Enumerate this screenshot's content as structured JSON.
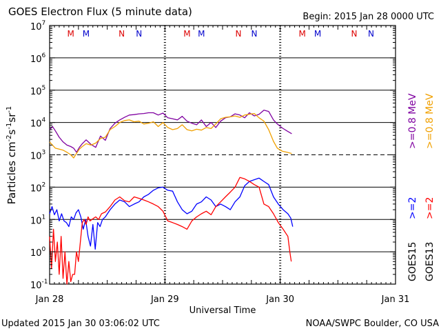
{
  "chart_data": {
    "type": "line",
    "title": "GOES Electron Flux (5 minute data)",
    "begin_label": "Begin: 2015 Jan 28 0000 UTC",
    "xlabel": "Universal Time",
    "ylabel": "Particles cm-2s-1sr-1",
    "ylabel_parts": [
      "Particles cm",
      "-2",
      "s",
      "-1",
      "sr",
      "-1"
    ],
    "y_scale": "log",
    "ylim": [
      0.1,
      10000000
    ],
    "y_ticks": [
      {
        "value": 10000000,
        "base": "10",
        "exp": "7"
      },
      {
        "value": 1000000,
        "base": "10",
        "exp": "6"
      },
      {
        "value": 100000,
        "base": "10",
        "exp": "5"
      },
      {
        "value": 10000,
        "base": "10",
        "exp": "4"
      },
      {
        "value": 1000,
        "base": "10",
        "exp": "3"
      },
      {
        "value": 100,
        "base": "10",
        "exp": "2"
      },
      {
        "value": 10,
        "base": "10",
        "exp": "1"
      },
      {
        "value": 1,
        "base": "10",
        "exp": "0"
      },
      {
        "value": 0.1,
        "base": "10",
        "exp": "-1"
      }
    ],
    "x_unit": "hours since 2015 Jan 28 0000 UTC",
    "xlim": [
      0,
      72
    ],
    "x_ticks": [
      {
        "value": 0,
        "label": "Jan 28"
      },
      {
        "value": 24,
        "label": "Jan 29"
      },
      {
        "value": 48,
        "label": "Jan 30"
      },
      {
        "value": 72,
        "label": "Jan 31"
      }
    ],
    "threshold_line": 1000,
    "mn_markers": [
      {
        "x": 4.4,
        "label": "M",
        "color": "#dd0000"
      },
      {
        "x": 7.6,
        "label": "M",
        "color": "#0000cc"
      },
      {
        "x": 15.0,
        "label": "N",
        "color": "#dd0000"
      },
      {
        "x": 18.6,
        "label": "N",
        "color": "#0000cc"
      },
      {
        "x": 28.6,
        "label": "M",
        "color": "#dd0000"
      },
      {
        "x": 31.6,
        "label": "M",
        "color": "#0000cc"
      },
      {
        "x": 39.3,
        "label": "N",
        "color": "#dd0000"
      },
      {
        "x": 42.6,
        "label": "N",
        "color": "#0000cc"
      },
      {
        "x": 52.6,
        "label": "M",
        "color": "#dd0000"
      },
      {
        "x": 55.8,
        "label": "M",
        "color": "#0000cc"
      },
      {
        "x": 63.4,
        "label": "N",
        "color": "#dd0000"
      },
      {
        "x": 66.9,
        "label": "N",
        "color": "#0000cc"
      }
    ],
    "legend_right": [
      {
        "text": "GOES15",
        "color": "#000000"
      },
      {
        "text": ">=2",
        "color": "#0000ff"
      },
      {
        "text": ">=0.8  MeV",
        "color": "#7f00a0"
      },
      {
        "text": "GOES13",
        "color": "#000000"
      },
      {
        "text": ">=2",
        "color": "#ff0000"
      },
      {
        "text": ">=0.8  MeV",
        "color": "#f0a000"
      }
    ],
    "series": [
      {
        "name": "GOES15 >=0.8 MeV",
        "color": "#7f00a0",
        "x": [
          0,
          0.6,
          1.2,
          2,
          2.8,
          3.6,
          4.4,
          5,
          5.6,
          6.2,
          6.8,
          7.6,
          8.6,
          9.6,
          10.6,
          11.6,
          12.6,
          13.6,
          14.6,
          15.6,
          16.6,
          17.6,
          18.6,
          19.6,
          20.6,
          21.6,
          22.6,
          23.6,
          24.6,
          25.6,
          26.6,
          27.6,
          28.6,
          29.6,
          30.6,
          31.6,
          32.6,
          33.6,
          34.6,
          35.6,
          36.6,
          37.6,
          38.6,
          39.6,
          40.6,
          41.6,
          42.6,
          43.6,
          44.6,
          45.6,
          46.6,
          47.4,
          48.4,
          49.4,
          50.4
        ],
        "y": [
          6000,
          7500,
          5500,
          3500,
          2500,
          2000,
          1800,
          1600,
          1200,
          1700,
          2200,
          2900,
          2100,
          1700,
          3800,
          2800,
          6500,
          9500,
          12000,
          14500,
          17000,
          17500,
          18500,
          19000,
          20000,
          20000,
          17000,
          19500,
          14000,
          13000,
          12000,
          15500,
          11000,
          9500,
          8500,
          12000,
          7500,
          10000,
          7000,
          11000,
          14000,
          15000,
          18500,
          17000,
          14000,
          20000,
          16000,
          18000,
          24000,
          22000,
          12000,
          9000,
          6800,
          5500,
          4500
        ]
      },
      {
        "name": "GOES13 >=0.8 MeV",
        "color": "#f0a000",
        "x": [
          0,
          0.6,
          1.2,
          2,
          2.8,
          3.6,
          4.4,
          5,
          5.6,
          6.2,
          6.8,
          7.6,
          8.6,
          9.6,
          10.6,
          11.6,
          12.6,
          13.6,
          14.6,
          15.6,
          16.6,
          17.6,
          18.6,
          19.6,
          20.6,
          21.6,
          22.6,
          23.6,
          24.6,
          25.6,
          26.6,
          27.6,
          28.6,
          29.6,
          30.6,
          31.6,
          32.6,
          33.6,
          34.6,
          35.6,
          36.6,
          37.6,
          38.6,
          39.6,
          40.6,
          41.6,
          42.6,
          43.6,
          44.6,
          45.6,
          46.6,
          47.4,
          48.4,
          49.4,
          50.4
        ],
        "y": [
          2500,
          2000,
          1600,
          1500,
          1400,
          1200,
          1000,
          800,
          1100,
          1500,
          1800,
          2200,
          2000,
          2300,
          3200,
          3500,
          6000,
          7500,
          10000,
          11500,
          12000,
          10500,
          11000,
          9000,
          9500,
          10500,
          7500,
          10000,
          7000,
          6000,
          6500,
          8500,
          6000,
          5500,
          6200,
          5800,
          7000,
          6500,
          9000,
          13000,
          14500,
          15000,
          16000,
          14500,
          17000,
          18000,
          19000,
          14000,
          11000,
          6000,
          2600,
          1600,
          1300,
          1200,
          1100
        ]
      },
      {
        "name": "GOES15 >=2 MeV",
        "color": "#0000ff",
        "x": [
          0,
          0.5,
          1,
          1.5,
          2,
          2.5,
          3,
          3.5,
          4,
          4.5,
          5,
          5.5,
          6,
          6.5,
          7,
          7.5,
          8,
          8.5,
          9,
          9.5,
          10,
          10.5,
          11,
          11.6,
          12.6,
          13.6,
          14.6,
          15.6,
          16.6,
          17.6,
          18.6,
          19.6,
          20.6,
          21.6,
          22.6,
          23.6,
          24.6,
          25.6,
          26.6,
          27.6,
          28.6,
          29.6,
          30.6,
          31.6,
          32.6,
          33.6,
          34.6,
          35.6,
          36.6,
          37.6,
          38.6,
          39.6,
          40.6,
          41.6,
          42.6,
          43.6,
          44.6,
          45.6,
          46.6,
          47.6,
          48.6,
          49.6,
          50.2,
          50.6
        ],
        "y": [
          15,
          25,
          14,
          20,
          9,
          15,
          9,
          8,
          6,
          12,
          10,
          16,
          20,
          12,
          5,
          10,
          3,
          1.5,
          7,
          1.2,
          8,
          6,
          10,
          12,
          20,
          30,
          40,
          35,
          25,
          30,
          35,
          50,
          60,
          80,
          95,
          100,
          80,
          75,
          35,
          20,
          15,
          18,
          30,
          35,
          50,
          40,
          25,
          30,
          25,
          20,
          35,
          50,
          110,
          150,
          170,
          190,
          150,
          120,
          50,
          30,
          20,
          15,
          11,
          6
        ]
      },
      {
        "name": "GOES13 >=2 MeV",
        "color": "#ff0000",
        "x": [
          0,
          0.4,
          0.8,
          1.2,
          1.6,
          2,
          2.4,
          2.8,
          3.2,
          3.6,
          4,
          4.4,
          4.8,
          5.2,
          5.6,
          6,
          6.4,
          6.8,
          7.2,
          7.6,
          8,
          8.4,
          8.8,
          9.2,
          9.6,
          10.2,
          10.8,
          11.6,
          12.6,
          13.6,
          14.6,
          15.6,
          16.6,
          17.6,
          18.6,
          19.6,
          20.6,
          21.6,
          22.6,
          23.6,
          24.6,
          25.6,
          26.6,
          27.6,
          28.6,
          29.6,
          30.6,
          31.6,
          32.6,
          33.6,
          34.6,
          35.6,
          36.6,
          37.6,
          38.6,
          39.6,
          40.6,
          41.6,
          42.6,
          43.6,
          44.6,
          45.6,
          46.6,
          47.6,
          48.6,
          49.6,
          50.0,
          50.3
        ],
        "y": [
          3,
          0.3,
          5,
          0.5,
          2,
          0.2,
          3,
          0.15,
          1,
          0.1,
          0.5,
          0.12,
          0.2,
          0.2,
          1,
          0.5,
          2,
          8,
          10,
          7,
          12,
          9,
          10,
          11,
          12,
          10,
          15,
          17,
          25,
          40,
          50,
          38,
          35,
          50,
          45,
          40,
          35,
          30,
          25,
          18,
          9,
          8,
          7,
          6,
          5,
          9,
          12,
          15,
          18,
          14,
          25,
          35,
          50,
          70,
          100,
          200,
          180,
          150,
          120,
          100,
          30,
          25,
          15,
          8,
          5,
          3,
          1,
          0.5
        ]
      }
    ]
  },
  "footer": {
    "updated": "Updated 2015 Jan 30 03:06:02 UTC",
    "credit": "NOAA/SWPC Boulder, CO USA"
  }
}
